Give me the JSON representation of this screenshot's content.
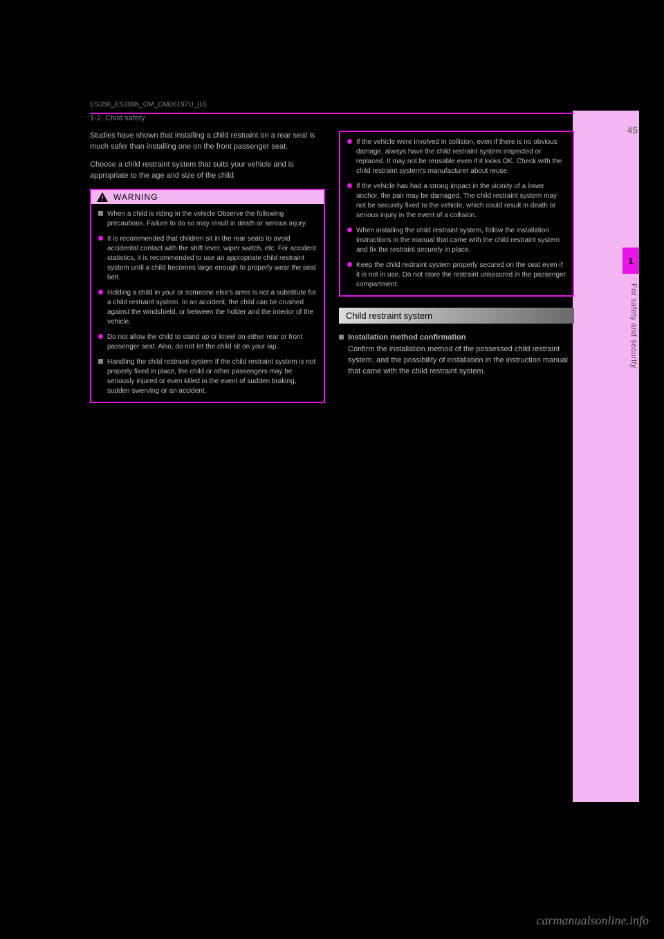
{
  "page": {
    "number": "45",
    "meta_left": "ES350_ES300h_OM_OM06197U_(U)",
    "section_breadcrumb": "1-2. Child safety"
  },
  "side": {
    "chapter": "1",
    "label": "For safety and security"
  },
  "left_col": {
    "p1": "Studies have shown that installing a child restraint on a rear seat is much safer than installing one on the front passenger seat.",
    "p2": "Choose a child restraint system that suits your vehicle and is appropriate to the age and size of the child.",
    "warning": {
      "title": "WARNING",
      "items": [
        {
          "type": "sq",
          "text": "When a child is riding in the vehicle\nObserve the following precautions. Failure to do so may result in death or serious injury."
        },
        {
          "type": "dot",
          "text": "It is recommended that children sit in the rear seats to avoid accidental contact with the shift lever, wiper switch, etc. For accident statistics, it is recommended to use an appropriate child restraint system until a child becomes large enough to properly wear the seat belt."
        },
        {
          "type": "dot",
          "text": "Holding a child in your or someone else's arms is not a substitute for a child restraint system. In an accident, the child can be crushed against the windshield, or between the holder and the interior of the vehicle."
        },
        {
          "type": "dot",
          "text": "Do not allow the child to stand up or kneel on either rear or front passenger seat. Also, do not let the child sit on your lap."
        },
        {
          "type": "sq",
          "text": "Handling the child restraint system\nIf the child restraint system is not properly fixed in place, the child or other passengers may be seriously injured or even killed in the event of sudden braking, sudden swerving or an accident."
        }
      ]
    }
  },
  "right_col": {
    "warning_items": [
      {
        "type": "dot",
        "text": "If the vehicle were involved in collision, even if there is no obvious damage, always have the child restraint system inspected or replaced. It may not be reusable even if it looks OK. Check with the child restraint system's manufacturer about reuse."
      },
      {
        "type": "dot",
        "text": "If the vehicle has had a strong impact in the vicinity of a lower anchor, the pair may be damaged. The child restraint system may not be securely fixed to the vehicle, which could result in death or serious injury in the event of a collision."
      },
      {
        "type": "dot",
        "text": "When installing the child restraint system, follow the installation instructions in the manual that came with the child restraint system and fix the restraint securely in place."
      },
      {
        "type": "dot",
        "text": "Keep the child restraint system properly secured on the seat even if it is not in use. Do not store the restraint unsecured in the passenger compartment."
      }
    ],
    "section_title": "Child restraint system",
    "sub": {
      "title": "Installation method confirmation",
      "body": "Confirm the installation method of the possessed child restraint system, and the possibility of installation in the instruction manual that came with the child restraint system."
    }
  },
  "watermark": "carmanualsonline.info"
}
